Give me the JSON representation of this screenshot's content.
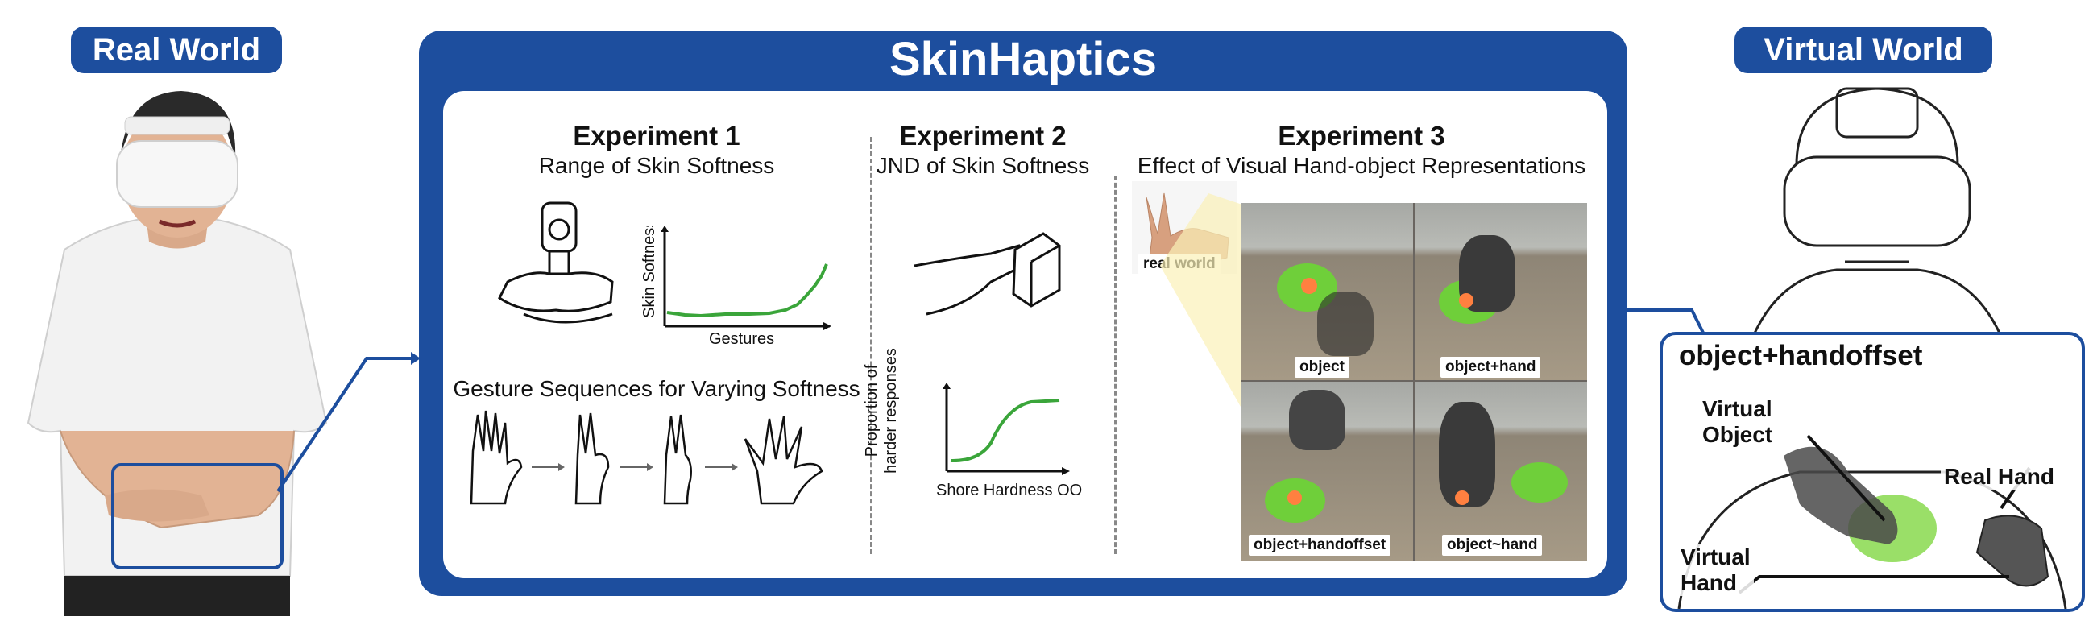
{
  "left_label": "Real World",
  "right_label": "Virtual World",
  "title": "SkinHaptics",
  "experiments": [
    {
      "title": "Experiment 1",
      "subtitle": "Range of Skin Softness"
    },
    {
      "title": "Experiment 2",
      "subtitle": "JND of Skin Softness"
    },
    {
      "title": "Experiment 3",
      "subtitle": "Effect of Visual Hand-object Representations"
    }
  ],
  "exp1": {
    "chart_ylabel": "Skin Softness",
    "chart_xlabel": "Gestures",
    "sequence_label": "Gesture Sequences for Varying Softness"
  },
  "exp2": {
    "chart_ylabel_line1": "Proportion of",
    "chart_ylabel_line2": "harder responses",
    "chart_xlabel": "Shore Hardness OO"
  },
  "exp3": {
    "real_world_label": "real world",
    "conditions": [
      "object",
      "object+hand",
      "object+handoffset",
      "object~hand"
    ]
  },
  "virtual": {
    "inset_title": "object+handoffset",
    "callouts": {
      "virtual_object": [
        "Virtual",
        "Object"
      ],
      "real_hand": "Real Hand",
      "virtual_hand": [
        "Virtual",
        "Hand"
      ]
    }
  },
  "colors": {
    "brand": "#1d4e9e",
    "curve": "#3aa53a",
    "object": "#6fcf3a"
  }
}
